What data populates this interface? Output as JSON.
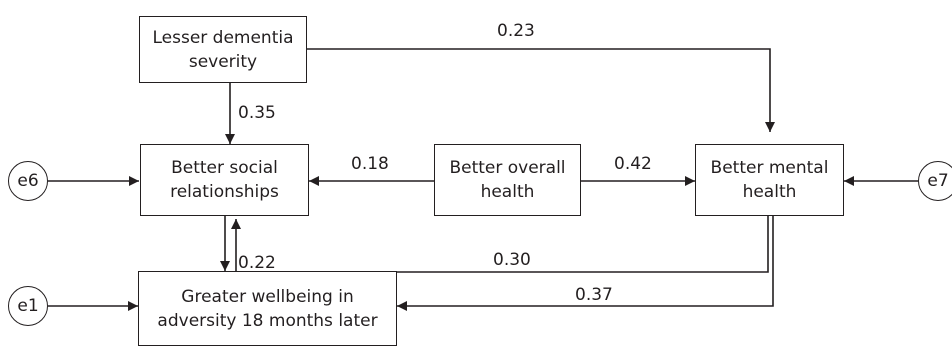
{
  "nodes": {
    "dementia": "Lesser dementia\nseverity",
    "social": "Better social\nrelationships",
    "overall": "Better overall\nhealth",
    "mental": "Better mental\nhealth",
    "wellbeing": "Greater wellbeing in\nadversity 18 months later"
  },
  "errors": {
    "e6": "e6",
    "e7": "e7",
    "e1": "e1"
  },
  "paths": {
    "dementia_to_mental": "0.23",
    "dementia_to_social": "0.35",
    "overall_to_social": "0.18",
    "overall_to_mental": "0.42",
    "mental_to_social": "0.30",
    "social_to_wellbeing": "0.22",
    "mental_to_wellbeing": "0.37"
  }
}
